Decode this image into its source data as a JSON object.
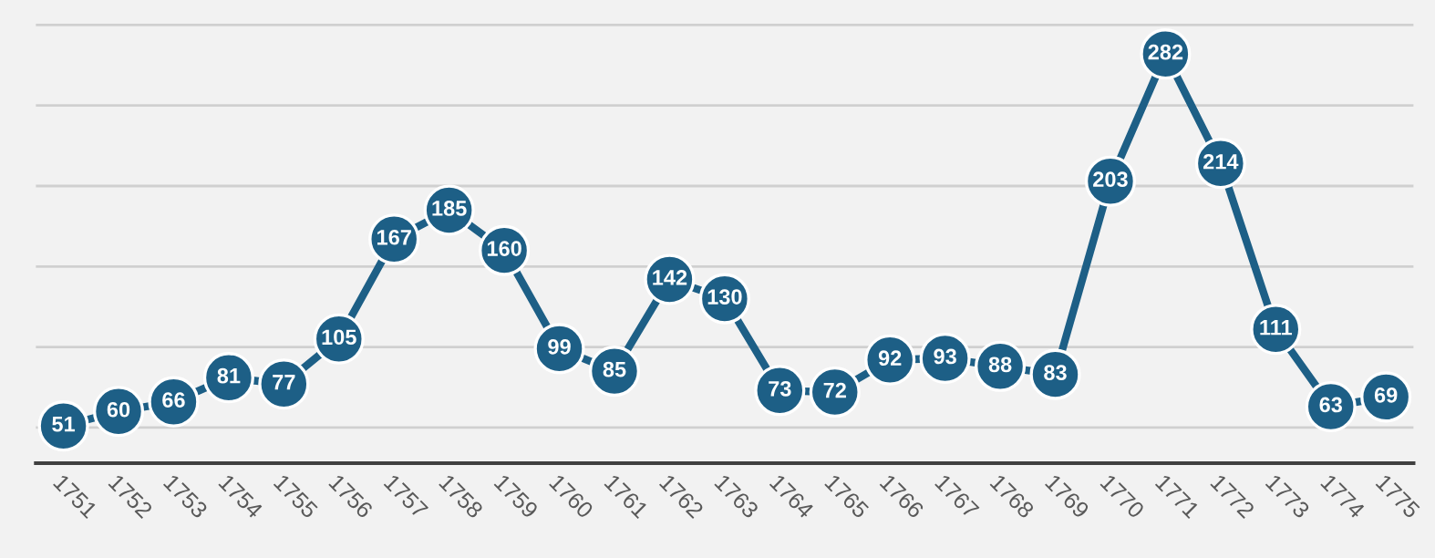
{
  "chart_data": {
    "type": "line",
    "categories": [
      "1751",
      "1752",
      "1753",
      "1754",
      "1755",
      "1756",
      "1757",
      "1758",
      "1759",
      "1760",
      "1761",
      "1762",
      "1763",
      "1764",
      "1765",
      "1766",
      "1767",
      "1768",
      "1769",
      "1770",
      "1771",
      "1772",
      "1773",
      "1774",
      "1775"
    ],
    "series": [
      {
        "color": "#1d5f86",
        "values": [
          51,
          60,
          66,
          81,
          77,
          105,
          167,
          185,
          160,
          99,
          85,
          142,
          130,
          73,
          72,
          92,
          93,
          88,
          83,
          203,
          282,
          214,
          111,
          63,
          69
        ]
      }
    ],
    "tick_labels": "x",
    "grid": "y",
    "marker": "circle",
    "line_style": "solid",
    "data_labels": true
  }
}
